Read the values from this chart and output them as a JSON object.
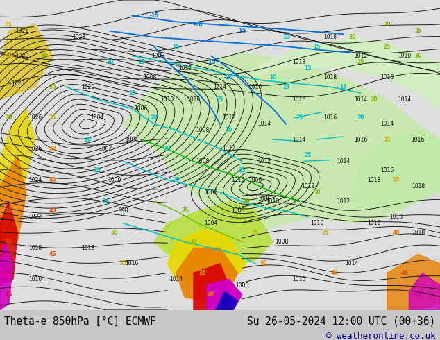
{
  "title_left": "Theta-e 850hPa [°C] ECMWF",
  "title_right": "Su 26-05-2024 12:00 UTC (00+36)",
  "copyright": "© weatheronline.co.uk",
  "bg_color": "#c8c8c8",
  "bottom_bar_color": "#e8e8e8",
  "title_fontsize": 10.5,
  "copyright_fontsize": 9,
  "title_color": "#000000",
  "copyright_color": "#000090",
  "fig_width": 6.34,
  "fig_height": 4.9,
  "dpi": 100
}
